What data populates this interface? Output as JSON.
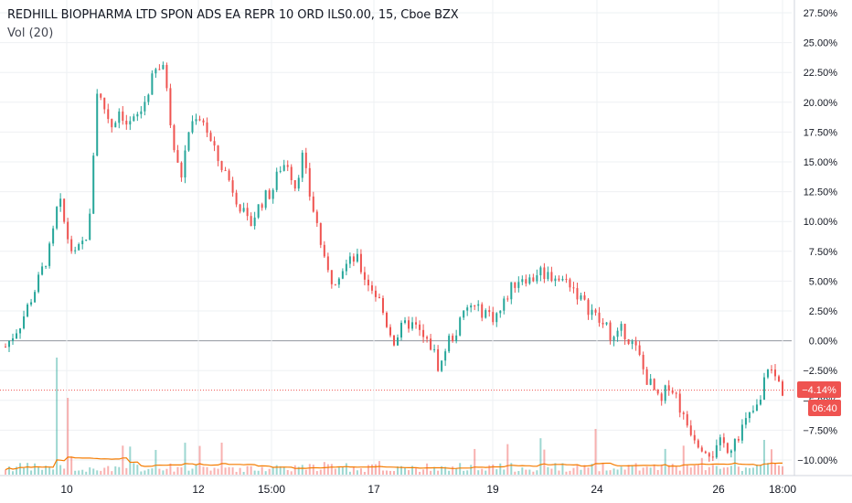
{
  "header": {
    "title": "REDHILL BIOPHARMA LTD SPON ADS EA REPR 10 ORD ILS0.00, 15, Cboe BZX",
    "volume_label": "Vol (20)"
  },
  "price_badge": {
    "value": "−4.14%",
    "countdown": "06:40"
  },
  "colors": {
    "up": "#26a69a",
    "down": "#ef5350",
    "vol_ma": "#f57c00",
    "grid": "#eef0f3",
    "text": "#131722",
    "badge": "#ef5350"
  },
  "chart_data": {
    "type": "candlestick",
    "y_unit": "%",
    "ylim": [
      -11.5,
      28.5
    ],
    "y_ticks": [
      "27.50%",
      "25.00%",
      "22.50%",
      "20.00%",
      "17.50%",
      "15.00%",
      "12.50%",
      "10.00%",
      "7.50%",
      "5.00%",
      "2.50%",
      "0.00%",
      "−2.50%",
      "−5.00%",
      "−7.50%",
      "−10.00%"
    ],
    "x_ticks": [
      "10",
      "12",
      "15:00",
      "17",
      "19",
      "24",
      "26",
      "18:00"
    ],
    "zero_line": 0,
    "last_value": -4.14,
    "close_path": [
      [
        0,
        -0.5
      ],
      [
        2,
        1.5
      ],
      [
        4,
        4.5
      ],
      [
        6,
        8.0
      ],
      [
        7,
        12.0
      ],
      [
        8,
        9.0
      ],
      [
        9,
        7.0
      ],
      [
        10,
        8.0
      ],
      [
        11,
        9.5
      ],
      [
        12,
        21.0
      ],
      [
        13,
        19.5
      ],
      [
        14,
        18.0
      ],
      [
        15,
        19.5
      ],
      [
        16,
        18.0
      ],
      [
        17,
        18.5
      ],
      [
        18,
        19.5
      ],
      [
        19,
        21.5
      ],
      [
        20,
        23.0
      ],
      [
        21,
        22.5
      ],
      [
        22,
        16.5
      ],
      [
        23,
        13.5
      ],
      [
        24,
        17.5
      ],
      [
        25,
        19.0
      ],
      [
        26,
        18.5
      ],
      [
        27,
        16.5
      ],
      [
        28,
        15.0
      ],
      [
        29,
        14.0
      ],
      [
        30,
        12.5
      ],
      [
        31,
        11.0
      ],
      [
        32,
        9.5
      ],
      [
        33,
        11.0
      ],
      [
        34,
        12.0
      ],
      [
        35,
        12.5
      ],
      [
        36,
        14.5
      ],
      [
        37,
        15.0
      ],
      [
        38,
        13.0
      ],
      [
        39,
        15.5
      ],
      [
        40,
        12.0
      ],
      [
        41,
        9.5
      ],
      [
        42,
        6.0
      ],
      [
        43,
        5.0
      ],
      [
        44,
        6.0
      ],
      [
        45,
        6.5
      ],
      [
        46,
        7.0
      ],
      [
        47,
        5.5
      ],
      [
        48,
        4.5
      ],
      [
        49,
        3.5
      ],
      [
        50,
        1.5
      ],
      [
        51,
        0.0
      ],
      [
        52,
        1.0
      ],
      [
        53,
        1.5
      ],
      [
        54,
        1.0
      ],
      [
        55,
        0.0
      ],
      [
        56,
        -0.5
      ],
      [
        57,
        -2.5
      ],
      [
        58,
        0.0
      ],
      [
        59,
        0.5
      ],
      [
        60,
        2.0
      ],
      [
        61,
        3.0
      ],
      [
        62,
        2.5
      ],
      [
        63,
        2.5
      ],
      [
        64,
        2.0
      ],
      [
        65,
        2.5
      ],
      [
        66,
        4.0
      ],
      [
        67,
        5.0
      ],
      [
        68,
        5.5
      ],
      [
        69,
        5.0
      ],
      [
        70,
        6.0
      ],
      [
        71,
        5.5
      ],
      [
        72,
        5.5
      ],
      [
        73,
        5.0
      ],
      [
        74,
        5.0
      ],
      [
        75,
        4.0
      ],
      [
        76,
        3.0
      ],
      [
        77,
        2.5
      ],
      [
        78,
        1.5
      ],
      [
        79,
        1.0
      ],
      [
        80,
        0.0
      ],
      [
        81,
        1.0
      ],
      [
        82,
        0.0
      ],
      [
        83,
        -1.0
      ],
      [
        84,
        -3.0
      ],
      [
        85,
        -4.0
      ],
      [
        86,
        -5.5
      ],
      [
        87,
        -3.5
      ],
      [
        88,
        -4.5
      ],
      [
        89,
        -6.5
      ],
      [
        90,
        -7.5
      ],
      [
        91,
        -8.5
      ],
      [
        92,
        -9.0
      ],
      [
        93,
        -9.5
      ],
      [
        94,
        -8.5
      ],
      [
        95,
        -9.0
      ],
      [
        96,
        -8.0
      ],
      [
        97,
        -7.0
      ],
      [
        98,
        -6.0
      ],
      [
        99,
        -5.5
      ],
      [
        100,
        -2.0
      ],
      [
        101,
        -3.0
      ],
      [
        102,
        -4.14
      ]
    ]
  }
}
